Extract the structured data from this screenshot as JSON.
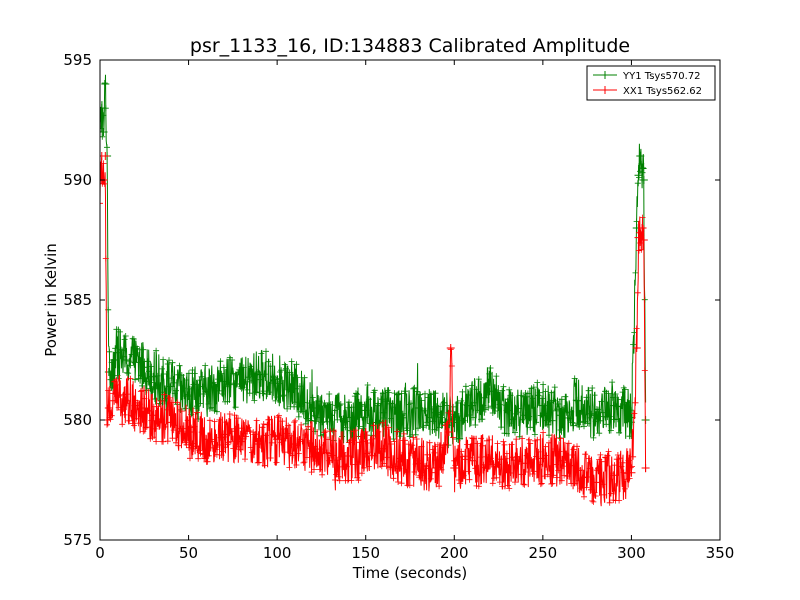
{
  "chart_data": {
    "type": "line",
    "title": "psr_1133_16, ID:134883 Calibrated Amplitude",
    "xlabel": "Time (seconds)",
    "ylabel": "Power in Kelvin",
    "xlim": [
      0,
      350
    ],
    "ylim": [
      575,
      595
    ],
    "xticks": [
      0,
      50,
      100,
      150,
      200,
      250,
      300,
      350
    ],
    "yticks": [
      575,
      580,
      585,
      590,
      595
    ],
    "xtick_labels": [
      "0",
      "50",
      "100",
      "150",
      "200",
      "250",
      "300",
      "350"
    ],
    "ytick_labels": [
      "575",
      "580",
      "585",
      "590",
      "595"
    ],
    "grid": false,
    "legend_position": "top-right",
    "marker": "+",
    "series": [
      {
        "name": "YY1 Tsys570.72",
        "color": "#008000",
        "x": [
          0,
          1,
          2,
          3,
          4,
          5,
          8,
          10,
          15,
          20,
          25,
          30,
          40,
          50,
          60,
          70,
          80,
          90,
          100,
          110,
          120,
          130,
          140,
          150,
          160,
          170,
          180,
          190,
          197,
          200,
          210,
          220,
          230,
          240,
          250,
          260,
          270,
          280,
          290,
          300,
          303,
          304,
          305,
          306,
          307,
          308
        ],
        "y": [
          592,
          593,
          592,
          594,
          591,
          582,
          582.5,
          582.8,
          582.5,
          582.4,
          582.2,
          581.8,
          581.4,
          581.0,
          581.2,
          581.6,
          581.5,
          581.9,
          581.7,
          581.3,
          580.5,
          580.2,
          580.1,
          580.4,
          580.3,
          580.2,
          580.5,
          580.3,
          580.0,
          579.9,
          580.6,
          581.2,
          580.4,
          580.2,
          580.6,
          580.2,
          580.8,
          580.2,
          580.6,
          580.1,
          588,
          590.2,
          591,
          590.5,
          590,
          580
        ]
      },
      {
        "name": "XX1 Tsys562.62",
        "color": "#ff0000",
        "x": [
          0,
          1,
          2,
          3,
          4,
          5,
          8,
          10,
          15,
          20,
          25,
          30,
          40,
          50,
          60,
          70,
          80,
          90,
          100,
          110,
          120,
          130,
          140,
          150,
          160,
          170,
          180,
          190,
          197,
          198,
          200,
          210,
          220,
          230,
          240,
          250,
          260,
          270,
          280,
          290,
          300,
          303,
          304,
          305,
          306,
          307,
          308
        ],
        "y": [
          590,
          591,
          590,
          591,
          580,
          580.5,
          580.8,
          581.0,
          580.8,
          580.6,
          580.5,
          580.2,
          579.9,
          579.5,
          579.2,
          579.4,
          579.1,
          579.0,
          579.2,
          579.0,
          578.9,
          578.6,
          578.5,
          578.6,
          578.8,
          578.4,
          578.2,
          578.0,
          579.5,
          583,
          578.0,
          578.3,
          578.4,
          578.1,
          578.2,
          578.4,
          578.3,
          577.9,
          577.4,
          577.7,
          577.8,
          583,
          587.6,
          587.8,
          588,
          587.5,
          578
        ]
      }
    ]
  }
}
